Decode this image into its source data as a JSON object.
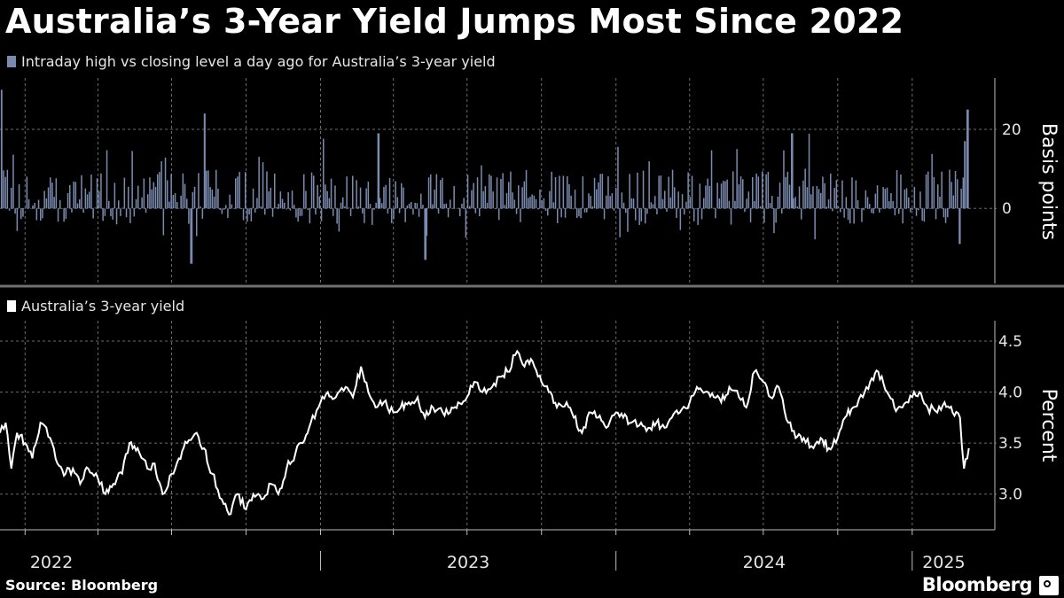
{
  "title": "Australia’s 3-Year Yield Jumps Most Since 2022",
  "source": "Source: Bloomberg",
  "brand": "Bloomberg",
  "colors": {
    "bars": "#7b8bb0",
    "line": "#ffffff",
    "grid": "#6b6b6b",
    "divider": "#707070"
  },
  "chart_data": [
    {
      "type": "bar",
      "legend": "Intraday high vs closing level a day ago for Australia’s 3-year yield",
      "ylabel": "Basis points",
      "ylim": [
        -19,
        33
      ],
      "yticks": [
        0,
        20
      ],
      "seed": 7,
      "x_range": [
        "2021-12-01",
        "2025-03-20"
      ],
      "values_description": "",
      "notable": [
        {
          "date": "2021-12-02",
          "value": 30
        },
        {
          "date": "2022-08-10",
          "value": 24
        },
        {
          "date": "2022-07-25",
          "value": -14
        },
        {
          "date": "2023-03-13",
          "value": 19
        },
        {
          "date": "2023-05-10",
          "value": -13
        },
        {
          "date": "2024-08-05",
          "value": 19
        },
        {
          "date": "2025-03-06",
          "value": 17
        },
        {
          "date": "2025-03-10",
          "value": 25
        },
        {
          "date": "2025-02-28",
          "value": -9
        }
      ]
    },
    {
      "type": "line",
      "legend": "Australia’s 3-year yield",
      "ylabel": "Percent",
      "ylim": [
        2.65,
        4.7
      ],
      "yticks": [
        3.0,
        3.5,
        4.0,
        4.5
      ],
      "x_range": [
        "2021-12-01",
        "2025-03-20"
      ],
      "x_ticks": [
        "2022",
        "2023",
        "2024",
        "2025"
      ],
      "series": [
        {
          "x": [
            "2021-12-01",
            "2021-12-08",
            "2021-12-15",
            "2021-12-22",
            "2022-01-01",
            "2022-01-10",
            "2022-01-20",
            "2022-02-01",
            "2022-02-10",
            "2022-02-20",
            "2022-03-01",
            "2022-03-10",
            "2022-03-20",
            "2022-04-01",
            "2022-04-10",
            "2022-04-20",
            "2022-05-01",
            "2022-05-10",
            "2022-05-20",
            "2022-06-01",
            "2022-06-10",
            "2022-06-20",
            "2022-07-01",
            "2022-07-10",
            "2022-07-20",
            "2022-08-01",
            "2022-08-10",
            "2022-08-20",
            "2022-09-01",
            "2022-09-10",
            "2022-09-20",
            "2022-10-01",
            "2022-10-10",
            "2022-10-20",
            "2022-11-01",
            "2022-11-10",
            "2022-11-20",
            "2022-12-01",
            "2022-12-10",
            "2022-12-20",
            "2023-01-01",
            "2023-01-10",
            "2023-01-20",
            "2023-02-01",
            "2023-02-10",
            "2023-02-20",
            "2023-03-01",
            "2023-03-10",
            "2023-03-20",
            "2023-04-01",
            "2023-04-10",
            "2023-04-20",
            "2023-05-01",
            "2023-05-10",
            "2023-05-20",
            "2023-06-01",
            "2023-06-10",
            "2023-06-20",
            "2023-07-01",
            "2023-07-10",
            "2023-07-20",
            "2023-08-01",
            "2023-08-10",
            "2023-08-20",
            "2023-09-01",
            "2023-09-10",
            "2023-09-20",
            "2023-10-01",
            "2023-10-10",
            "2023-10-20",
            "2023-11-01",
            "2023-11-10",
            "2023-11-20",
            "2023-12-01",
            "2023-12-10",
            "2023-12-20",
            "2024-01-01",
            "2024-01-10",
            "2024-01-20",
            "2024-02-01",
            "2024-02-10",
            "2024-02-20",
            "2024-03-01",
            "2024-03-10",
            "2024-03-20",
            "2024-04-01",
            "2024-04-10",
            "2024-04-20",
            "2024-05-01",
            "2024-05-10",
            "2024-05-20",
            "2024-06-01",
            "2024-06-10",
            "2024-06-20",
            "2024-07-01",
            "2024-07-10",
            "2024-07-20",
            "2024-08-01",
            "2024-08-10",
            "2024-08-20",
            "2024-09-01",
            "2024-09-10",
            "2024-09-20",
            "2024-10-01",
            "2024-10-10",
            "2024-10-20",
            "2024-11-01",
            "2024-11-10",
            "2024-11-20",
            "2024-12-01",
            "2024-12-10",
            "2024-12-20",
            "2025-01-01",
            "2025-01-10",
            "2025-01-20",
            "2025-02-01",
            "2025-02-10",
            "2025-02-20",
            "2025-03-01",
            "2025-03-06",
            "2025-03-10",
            "2025-03-12"
          ],
          "y": [
            3.6,
            3.7,
            3.25,
            3.6,
            3.5,
            3.35,
            3.7,
            3.55,
            3.3,
            3.2,
            3.25,
            3.1,
            3.25,
            3.15,
            3.0,
            3.1,
            3.2,
            3.5,
            3.45,
            3.25,
            3.3,
            3.0,
            3.2,
            3.35,
            3.5,
            3.6,
            3.45,
            3.2,
            2.95,
            2.8,
            3.0,
            2.85,
            3.0,
            2.95,
            3.1,
            3.0,
            3.25,
            3.4,
            3.5,
            3.7,
            3.9,
            4.0,
            3.95,
            4.05,
            3.95,
            4.25,
            4.0,
            3.85,
            3.9,
            3.8,
            3.85,
            3.9,
            3.95,
            3.75,
            3.85,
            3.8,
            3.8,
            3.9,
            3.95,
            4.1,
            4.0,
            4.05,
            4.15,
            4.2,
            4.4,
            4.25,
            4.3,
            4.1,
            4.0,
            3.85,
            3.9,
            3.75,
            3.6,
            3.8,
            3.75,
            3.65,
            3.8,
            3.75,
            3.7,
            3.7,
            3.65,
            3.7,
            3.65,
            3.75,
            3.8,
            3.9,
            4.05,
            4.0,
            3.95,
            3.9,
            4.05,
            3.95,
            3.85,
            4.2,
            4.1,
            3.95,
            4.05,
            3.7,
            3.55,
            3.55,
            3.45,
            3.55,
            3.45,
            3.55,
            3.75,
            3.85,
            3.95,
            4.1,
            4.2,
            4.0,
            3.85,
            3.85,
            3.95,
            4.0,
            3.85,
            3.8,
            3.9,
            3.8,
            3.75,
            3.25,
            3.35,
            3.45
          ]
        }
      ]
    }
  ]
}
